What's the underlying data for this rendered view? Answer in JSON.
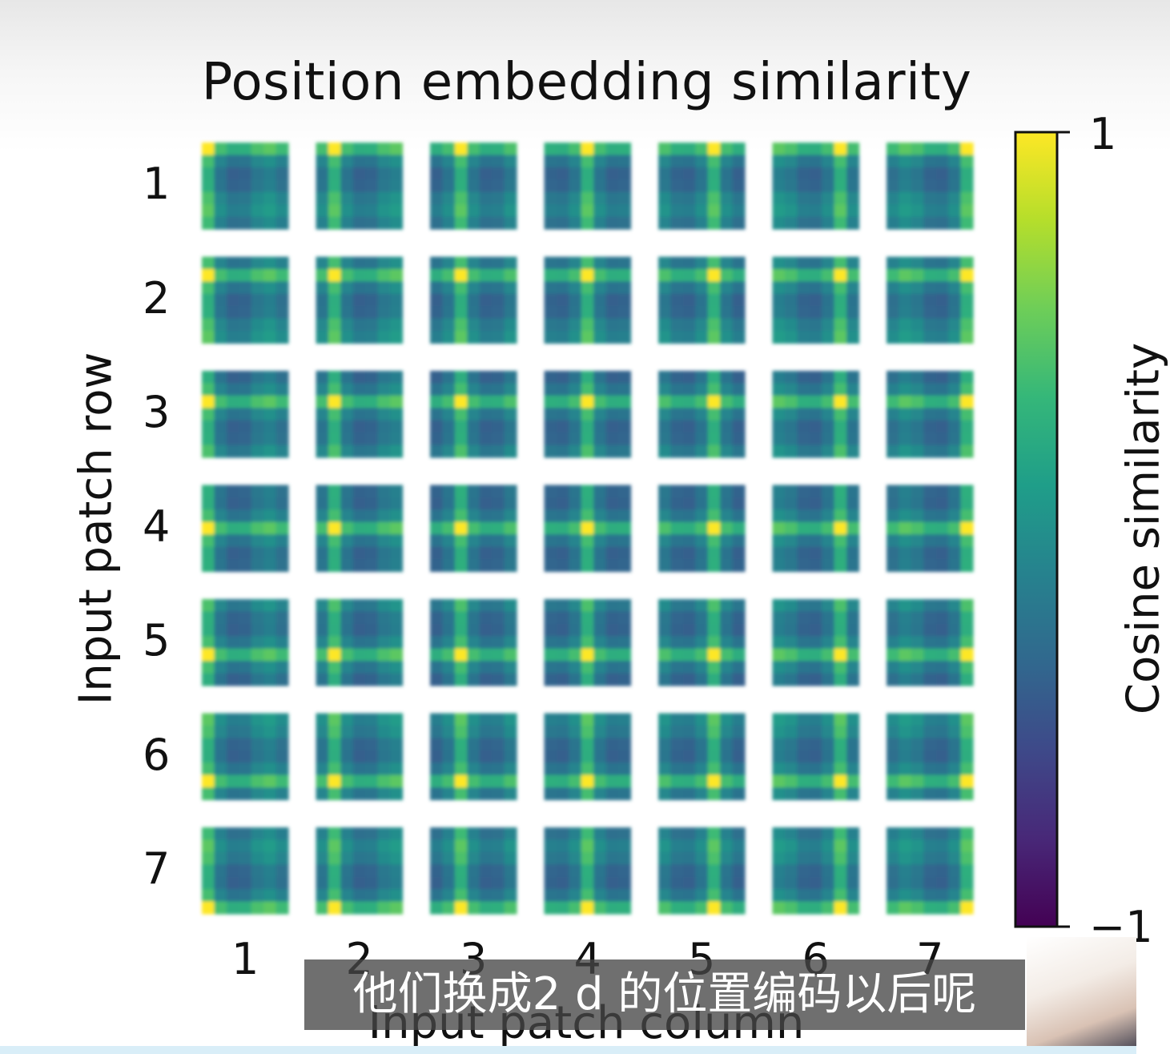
{
  "chart_data": {
    "type": "heatmap",
    "title": "Position embedding similarity",
    "xlabel": "Input patch column",
    "ylabel": "Input patch row",
    "x_ticks": [
      "1",
      "2",
      "3",
      "4",
      "5",
      "6",
      "7"
    ],
    "y_ticks": [
      "1",
      "2",
      "3",
      "4",
      "5",
      "6",
      "7"
    ],
    "grid_rows": 7,
    "grid_cols": 7,
    "colorbar": {
      "label": "Cosine similarity",
      "min_label": "−1",
      "max_label": "1",
      "vmin": -1,
      "vmax": 1,
      "colormap": "viridis"
    },
    "description_of_values": "7x7 grid of tiles; tile (r,c) shows cosine similarity between position embedding of patch (r,c) and all 7x7 patch embeddings; brightest (yellow) stripes along row r and column c"
  },
  "caption": {
    "subtitle": "他们换成2 d 的位置编码以后呢"
  },
  "colors": {
    "viridis": [
      "#440154",
      "#482878",
      "#3e4989",
      "#31688e",
      "#26828e",
      "#1f9e89",
      "#35b779",
      "#6ece58",
      "#b5de2b",
      "#fde725"
    ],
    "text": "#111111",
    "subtitle_bg": "#464646"
  }
}
